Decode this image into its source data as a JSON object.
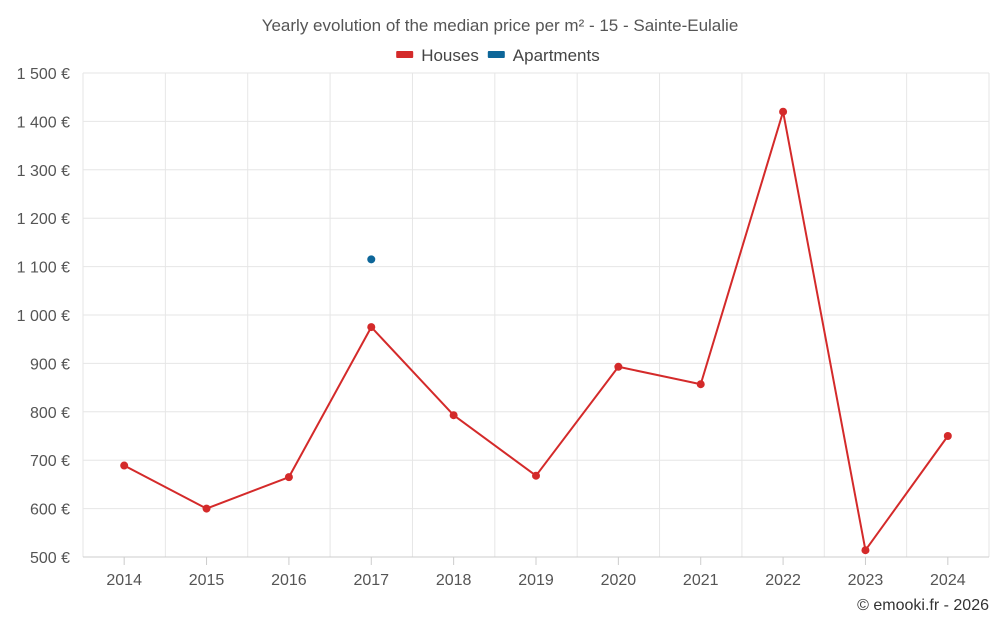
{
  "chart_data": {
    "type": "line",
    "title": "Yearly evolution of the median price per m² - 15 - Sainte-Eulalie",
    "categories": [
      "2014",
      "2015",
      "2016",
      "2017",
      "2018",
      "2019",
      "2020",
      "2021",
      "2022",
      "2023",
      "2024"
    ],
    "series": [
      {
        "name": "Houses",
        "color": "#d42a2a",
        "values": [
          689,
          600,
          665,
          975,
          793,
          668,
          893,
          857,
          1420,
          514,
          750
        ]
      },
      {
        "name": "Apartments",
        "color": "#0d6699",
        "values": [
          null,
          null,
          null,
          1115,
          null,
          null,
          null,
          null,
          null,
          null,
          null
        ]
      }
    ],
    "ylim": [
      500,
      1500
    ],
    "yticks": [
      500,
      600,
      700,
      800,
      900,
      1000,
      1100,
      1200,
      1300,
      1400,
      1500
    ],
    "ytick_labels": [
      "500 €",
      "600 €",
      "700 €",
      "800 €",
      "900 €",
      "1 000 €",
      "1 100 €",
      "1 200 €",
      "1 300 €",
      "1 400 €",
      "1 500 €"
    ],
    "legend_position": "top-center",
    "grid": true
  },
  "credit": "© emooki.fr - 2026"
}
